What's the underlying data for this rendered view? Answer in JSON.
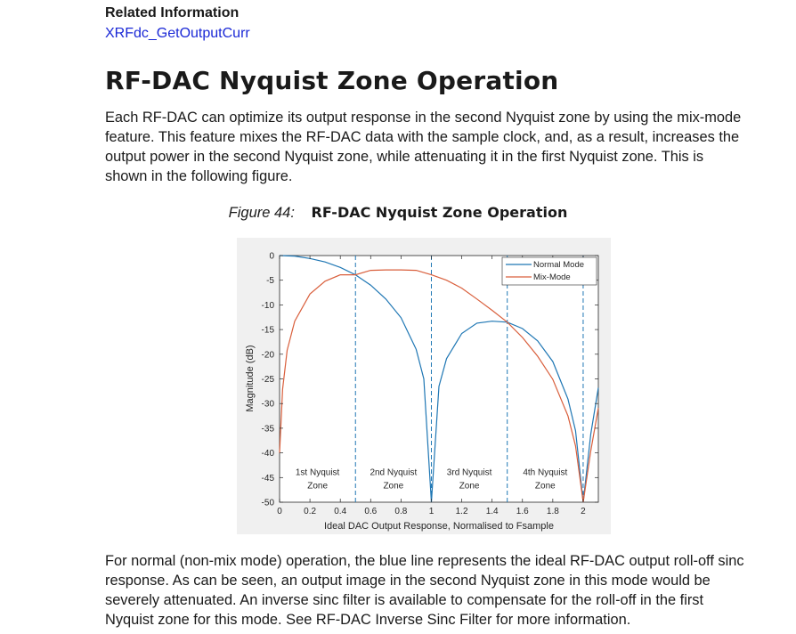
{
  "related": {
    "heading": "Related Information",
    "link": "XRFdc_GetOutputCurr"
  },
  "section": {
    "title": "RF-DAC Nyquist Zone Operation",
    "para1": "Each RF-DAC can optimize its output response in the second Nyquist zone by using the mix-mode feature. This feature mixes the RF-DAC data with the sample clock, and, as a result, increases the output power in the second Nyquist zone, while attenuating it in the first Nyquist zone. This is shown in the following figure.",
    "para2": "For normal (non-mix mode) operation, the blue line represents the ideal RF-DAC output roll-off sinc response. As can be seen, an output image in the second Nyquist zone in this mode would be severely attenuated. An inverse sinc filter is available to compensate for the roll-off in the first Nyquist zone for this mode. See RF-DAC Inverse Sinc Filter for more information."
  },
  "figure": {
    "number": "Figure 44:",
    "title": "RF-DAC Nyquist Zone Operation"
  },
  "chart_data": {
    "type": "line",
    "xlabel": "Ideal DAC Output Response, Normalised to Fsample",
    "ylabel": "Magnitude (dB)",
    "xlim": [
      0,
      2.1
    ],
    "ylim": [
      -50,
      0
    ],
    "xticks": [
      "0",
      "0.2",
      "0.4",
      "0.6",
      "0.8",
      "1",
      "1.2",
      "1.4",
      "1.6",
      "1.8",
      "2"
    ],
    "yticks": [
      "0",
      "-5",
      "-10",
      "-15",
      "-20",
      "-25",
      "-30",
      "-35",
      "-40",
      "-45",
      "-50"
    ],
    "zone_boundaries": [
      0.5,
      1,
      1.5,
      2
    ],
    "zones": [
      {
        "line1": "1st Nyquist",
        "line2": "Zone",
        "x": 0.25
      },
      {
        "line1": "2nd Nyquist",
        "line2": "Zone",
        "x": 0.75
      },
      {
        "line1": "3rd Nyquist",
        "line2": "Zone",
        "x": 1.25
      },
      {
        "line1": "4th Nyquist",
        "line2": "Zone",
        "x": 1.75
      }
    ],
    "legend_position": "top-right",
    "grid": false,
    "series": [
      {
        "name": "Normal Mode",
        "color": "#1f77b4",
        "x": [
          0,
          0.1,
          0.2,
          0.3,
          0.4,
          0.5,
          0.6,
          0.7,
          0.8,
          0.9,
          0.95,
          1.0,
          1.05,
          1.1,
          1.2,
          1.3,
          1.4,
          1.5,
          1.6,
          1.7,
          1.8,
          1.9,
          1.95,
          2.0,
          2.05,
          2.1
        ],
        "y": [
          0,
          -0.1,
          -0.6,
          -1.3,
          -2.4,
          -3.9,
          -6.0,
          -8.8,
          -12.6,
          -19.0,
          -25.0,
          -50,
          -26.5,
          -20.9,
          -15.8,
          -13.7,
          -13.3,
          -13.5,
          -14.8,
          -17.3,
          -21.5,
          -29.1,
          -35.5,
          -50,
          -36.2,
          -26.8
        ]
      },
      {
        "name": "Mix-Mode",
        "color": "#d95f3c",
        "x": [
          0,
          0.02,
          0.05,
          0.1,
          0.2,
          0.3,
          0.4,
          0.5,
          0.6,
          0.7,
          0.8,
          0.9,
          1.0,
          1.1,
          1.2,
          1.3,
          1.4,
          1.5,
          1.6,
          1.7,
          1.8,
          1.9,
          1.95,
          2.0,
          2.05,
          2.1
        ],
        "y": [
          -40,
          -27.1,
          -19.2,
          -13.3,
          -7.8,
          -5.2,
          -3.9,
          -3.9,
          -3.0,
          -2.9,
          -2.9,
          -3.0,
          -3.9,
          -5.0,
          -6.6,
          -8.8,
          -11.1,
          -13.5,
          -16.6,
          -20.4,
          -25.1,
          -32.5,
          -38.6,
          -50,
          -39.6,
          -30.9
        ]
      }
    ]
  }
}
